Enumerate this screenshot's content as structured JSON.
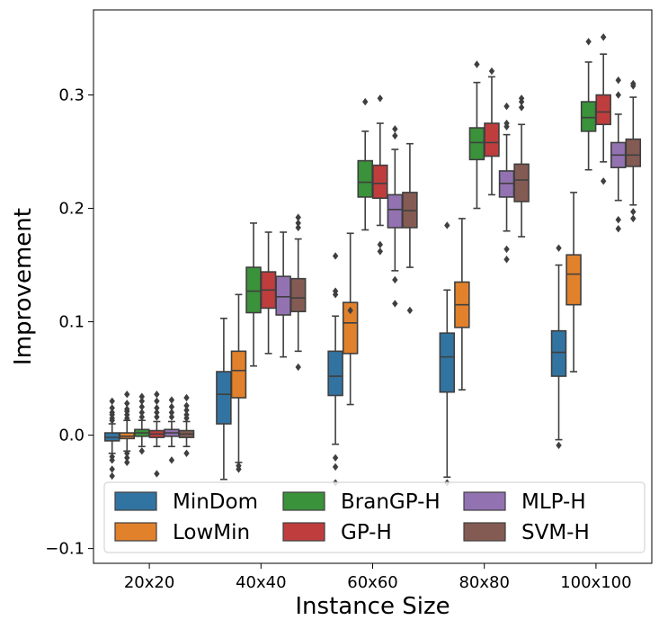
{
  "chart_data": {
    "type": "boxplot",
    "xlabel": "Instance Size",
    "ylabel": "Improvement",
    "ylim": [
      -0.113,
      0.375
    ],
    "yticks": [
      -0.1,
      0.0,
      0.1,
      0.2,
      0.3
    ],
    "ytick_labels": [
      "−0.1",
      "0.0",
      "0.1",
      "0.2",
      "0.3"
    ],
    "grid": false,
    "legend_position": "bottom",
    "categories": [
      "20x20",
      "40x40",
      "60x60",
      "80x80",
      "100x100"
    ],
    "series": [
      {
        "name": "MinDom",
        "color": "#3274a1",
        "boxes": [
          {
            "whislo": -0.016,
            "q1": -0.005,
            "med": -0.002,
            "q3": 0.002,
            "whishi": 0.01,
            "fliers": [
              -0.036,
              -0.03,
              -0.022,
              -0.019,
              0.013,
              0.015,
              0.018,
              0.02,
              0.024,
              0.03
            ]
          },
          {
            "whislo": -0.039,
            "q1": 0.01,
            "med": 0.036,
            "q3": 0.056,
            "whishi": 0.103,
            "fliers": []
          },
          {
            "whislo": -0.008,
            "q1": 0.035,
            "med": 0.052,
            "q3": 0.074,
            "whishi": 0.105,
            "fliers": [
              -0.042,
              -0.028,
              -0.02,
              0.124,
              0.127,
              0.158
            ]
          },
          {
            "whislo": -0.037,
            "q1": 0.038,
            "med": 0.069,
            "q3": 0.09,
            "whishi": 0.128,
            "fliers": [
              -0.042,
              0.185
            ]
          },
          {
            "whislo": -0.004,
            "q1": 0.052,
            "med": 0.073,
            "q3": 0.092,
            "whishi": 0.15,
            "fliers": [
              -0.009,
              0.165
            ]
          }
        ]
      },
      {
        "name": "LowMin",
        "color": "#e1812c",
        "boxes": [
          {
            "whislo": -0.014,
            "q1": -0.003,
            "med": -0.001,
            "q3": 0.002,
            "whishi": 0.013,
            "fliers": [
              -0.024,
              -0.02,
              -0.016,
              0.015,
              0.018,
              0.021,
              0.023,
              0.028,
              0.036
            ]
          },
          {
            "whislo": -0.024,
            "q1": 0.033,
            "med": 0.057,
            "q3": 0.074,
            "whishi": 0.124,
            "fliers": [
              -0.03,
              -0.027
            ]
          },
          {
            "whislo": 0.027,
            "q1": 0.072,
            "med": 0.099,
            "q3": 0.117,
            "whishi": 0.178,
            "fliers": [
              0.11
            ]
          },
          {
            "whislo": 0.04,
            "q1": 0.095,
            "med": 0.115,
            "q3": 0.135,
            "whishi": 0.191,
            "fliers": []
          },
          {
            "whislo": 0.056,
            "q1": 0.115,
            "med": 0.142,
            "q3": 0.159,
            "whishi": 0.214,
            "fliers": []
          }
        ]
      },
      {
        "name": "BranGP-H",
        "color": "#3a923a",
        "boxes": [
          {
            "whislo": -0.01,
            "q1": -0.001,
            "med": 0.002,
            "q3": 0.005,
            "whishi": 0.013,
            "fliers": [
              -0.014,
              0.016,
              0.02,
              0.025,
              0.03,
              0.034
            ]
          },
          {
            "whislo": 0.061,
            "q1": 0.108,
            "med": 0.127,
            "q3": 0.148,
            "whishi": 0.187,
            "fliers": []
          },
          {
            "whislo": 0.181,
            "q1": 0.21,
            "med": 0.223,
            "q3": 0.242,
            "whishi": 0.268,
            "fliers": [
              0.294
            ]
          },
          {
            "whislo": 0.2,
            "q1": 0.243,
            "med": 0.258,
            "q3": 0.271,
            "whishi": 0.311,
            "fliers": [
              0.327
            ]
          },
          {
            "whislo": 0.234,
            "q1": 0.268,
            "med": 0.28,
            "q3": 0.294,
            "whishi": 0.329,
            "fliers": [
              0.347
            ]
          }
        ]
      },
      {
        "name": "GP-H",
        "color": "#c03d3e",
        "boxes": [
          {
            "whislo": -0.01,
            "q1": -0.002,
            "med": 0.001,
            "q3": 0.004,
            "whishi": 0.012,
            "fliers": [
              -0.034,
              0.016,
              0.02,
              0.024,
              0.03,
              0.036
            ]
          },
          {
            "whislo": 0.072,
            "q1": 0.112,
            "med": 0.128,
            "q3": 0.144,
            "whishi": 0.179,
            "fliers": []
          },
          {
            "whislo": 0.185,
            "q1": 0.209,
            "med": 0.222,
            "q3": 0.238,
            "whishi": 0.275,
            "fliers": [
              0.162,
              0.168,
              0.297
            ]
          },
          {
            "whislo": 0.212,
            "q1": 0.246,
            "med": 0.258,
            "q3": 0.275,
            "whishi": 0.316,
            "fliers": [
              0.321
            ]
          },
          {
            "whislo": 0.241,
            "q1": 0.274,
            "med": 0.285,
            "q3": 0.3,
            "whishi": 0.336,
            "fliers": [
              0.224,
              0.351
            ]
          }
        ]
      },
      {
        "name": "MLP-H",
        "color": "#9372b2",
        "boxes": [
          {
            "whislo": -0.01,
            "q1": -0.001,
            "med": 0.002,
            "q3": 0.005,
            "whishi": 0.012,
            "fliers": [
              -0.022,
              0.016,
              0.02,
              0.025,
              0.031
            ]
          },
          {
            "whislo": 0.069,
            "q1": 0.106,
            "med": 0.122,
            "q3": 0.14,
            "whishi": 0.179,
            "fliers": []
          },
          {
            "whislo": 0.145,
            "q1": 0.183,
            "med": 0.199,
            "q3": 0.212,
            "whishi": 0.252,
            "fliers": [
              0.116,
              0.137,
              0.264,
              0.27
            ]
          },
          {
            "whislo": 0.18,
            "q1": 0.21,
            "med": 0.222,
            "q3": 0.233,
            "whishi": 0.265,
            "fliers": [
              0.155,
              0.164,
              0.272,
              0.275,
              0.29
            ]
          },
          {
            "whislo": 0.207,
            "q1": 0.236,
            "med": 0.247,
            "q3": 0.258,
            "whishi": 0.283,
            "fliers": [
              0.182,
              0.19,
              0.3,
              0.313
            ]
          }
        ]
      },
      {
        "name": "SVM-H",
        "color": "#845b53",
        "boxes": [
          {
            "whislo": -0.01,
            "q1": -0.002,
            "med": 0.001,
            "q3": 0.004,
            "whishi": 0.012,
            "fliers": [
              -0.016,
              0.015,
              0.018,
              0.022,
              0.026,
              0.033
            ]
          },
          {
            "whislo": 0.074,
            "q1": 0.109,
            "med": 0.121,
            "q3": 0.138,
            "whishi": 0.173,
            "fliers": [
              0.06,
              0.183,
              0.187,
              0.192
            ]
          },
          {
            "whislo": 0.148,
            "q1": 0.183,
            "med": 0.198,
            "q3": 0.214,
            "whishi": 0.257,
            "fliers": [
              0.11
            ]
          },
          {
            "whislo": 0.175,
            "q1": 0.206,
            "med": 0.225,
            "q3": 0.239,
            "whishi": 0.274,
            "fliers": [
              0.289,
              0.294,
              0.297
            ]
          },
          {
            "whislo": 0.203,
            "q1": 0.237,
            "med": 0.247,
            "q3": 0.261,
            "whishi": 0.298,
            "fliers": [
              0.191,
              0.197,
              0.308,
              0.31
            ]
          }
        ]
      }
    ]
  }
}
